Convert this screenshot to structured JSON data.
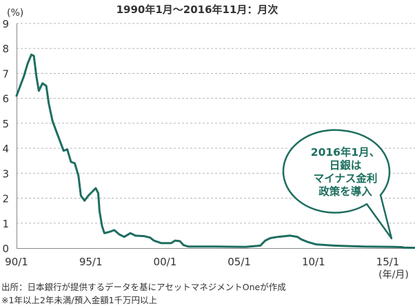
{
  "chart_data": {
    "type": "line",
    "title": "1990年1月〜2016年11月：月次",
    "y_unit_label": "(%)",
    "x_unit_label": "(年/月)",
    "ylim": [
      0,
      9
    ],
    "xlim": [
      "1990-01",
      "2016-11"
    ],
    "grid": "horizontal-dashed",
    "y_ticks": [
      "0",
      "1",
      "2",
      "3",
      "4",
      "5",
      "6",
      "7",
      "8",
      "9"
    ],
    "x_ticks": [
      {
        "label": "90/1",
        "date": "1990-01"
      },
      {
        "label": "95/1",
        "date": "1995-01"
      },
      {
        "label": "00/1",
        "date": "2000-01"
      },
      {
        "label": "05/1",
        "date": "2005-01"
      },
      {
        "label": "10/1",
        "date": "2010-01"
      },
      {
        "label": "15/1",
        "date": "2015-01"
      }
    ],
    "series": [
      {
        "color": "#1d6e5f",
        "points": [
          [
            "1990-01",
            6.1
          ],
          [
            "1990-04",
            6.5
          ],
          [
            "1990-07",
            6.9
          ],
          [
            "1990-10",
            7.4
          ],
          [
            "1991-01",
            7.75
          ],
          [
            "1991-03",
            7.7
          ],
          [
            "1991-05",
            6.9
          ],
          [
            "1991-07",
            6.3
          ],
          [
            "1991-10",
            6.6
          ],
          [
            "1992-01",
            6.5
          ],
          [
            "1992-03",
            5.8
          ],
          [
            "1992-06",
            5.1
          ],
          [
            "1992-09",
            4.7
          ],
          [
            "1992-12",
            4.3
          ],
          [
            "1993-03",
            3.9
          ],
          [
            "1993-06",
            3.95
          ],
          [
            "1993-09",
            3.45
          ],
          [
            "1993-12",
            3.4
          ],
          [
            "1994-03",
            2.9
          ],
          [
            "1994-05",
            2.1
          ],
          [
            "1994-08",
            1.9
          ],
          [
            "1994-11",
            2.1
          ],
          [
            "1995-02",
            2.25
          ],
          [
            "1995-05",
            2.4
          ],
          [
            "1995-07",
            2.2
          ],
          [
            "1995-08",
            1.5
          ],
          [
            "1995-10",
            0.9
          ],
          [
            "1995-12",
            0.6
          ],
          [
            "1996-04",
            0.65
          ],
          [
            "1996-08",
            0.72
          ],
          [
            "1996-12",
            0.55
          ],
          [
            "1997-04",
            0.45
          ],
          [
            "1997-09",
            0.6
          ],
          [
            "1998-01",
            0.5
          ],
          [
            "1998-08",
            0.48
          ],
          [
            "1999-01",
            0.42
          ],
          [
            "1999-04",
            0.3
          ],
          [
            "1999-10",
            0.2
          ],
          [
            "2000-06",
            0.2
          ],
          [
            "2000-09",
            0.3
          ],
          [
            "2001-01",
            0.28
          ],
          [
            "2001-04",
            0.12
          ],
          [
            "2001-08",
            0.06
          ],
          [
            "2003-06",
            0.06
          ],
          [
            "2005-06",
            0.05
          ],
          [
            "2006-06",
            0.1
          ],
          [
            "2006-10",
            0.3
          ],
          [
            "2007-02",
            0.4
          ],
          [
            "2007-08",
            0.45
          ],
          [
            "2008-06",
            0.5
          ],
          [
            "2008-12",
            0.45
          ],
          [
            "2009-03",
            0.35
          ],
          [
            "2009-08",
            0.25
          ],
          [
            "2010-03",
            0.15
          ],
          [
            "2011-06",
            0.1
          ],
          [
            "2012-06",
            0.08
          ],
          [
            "2013-06",
            0.06
          ],
          [
            "2015-06",
            0.05
          ],
          [
            "2016-01",
            0.04
          ],
          [
            "2016-02",
            0.02
          ],
          [
            "2016-11",
            0.01
          ]
        ]
      }
    ],
    "annotation": {
      "lines": [
        "2016年1月、",
        "日銀は",
        "マイナス金利",
        "政策を導入"
      ]
    }
  },
  "notes": [
    "出所：日本銀行が提供するデータを基にアセットマネジメントOneが作成",
    "※1年以上2年未満/預入金額1千万円以上"
  ]
}
